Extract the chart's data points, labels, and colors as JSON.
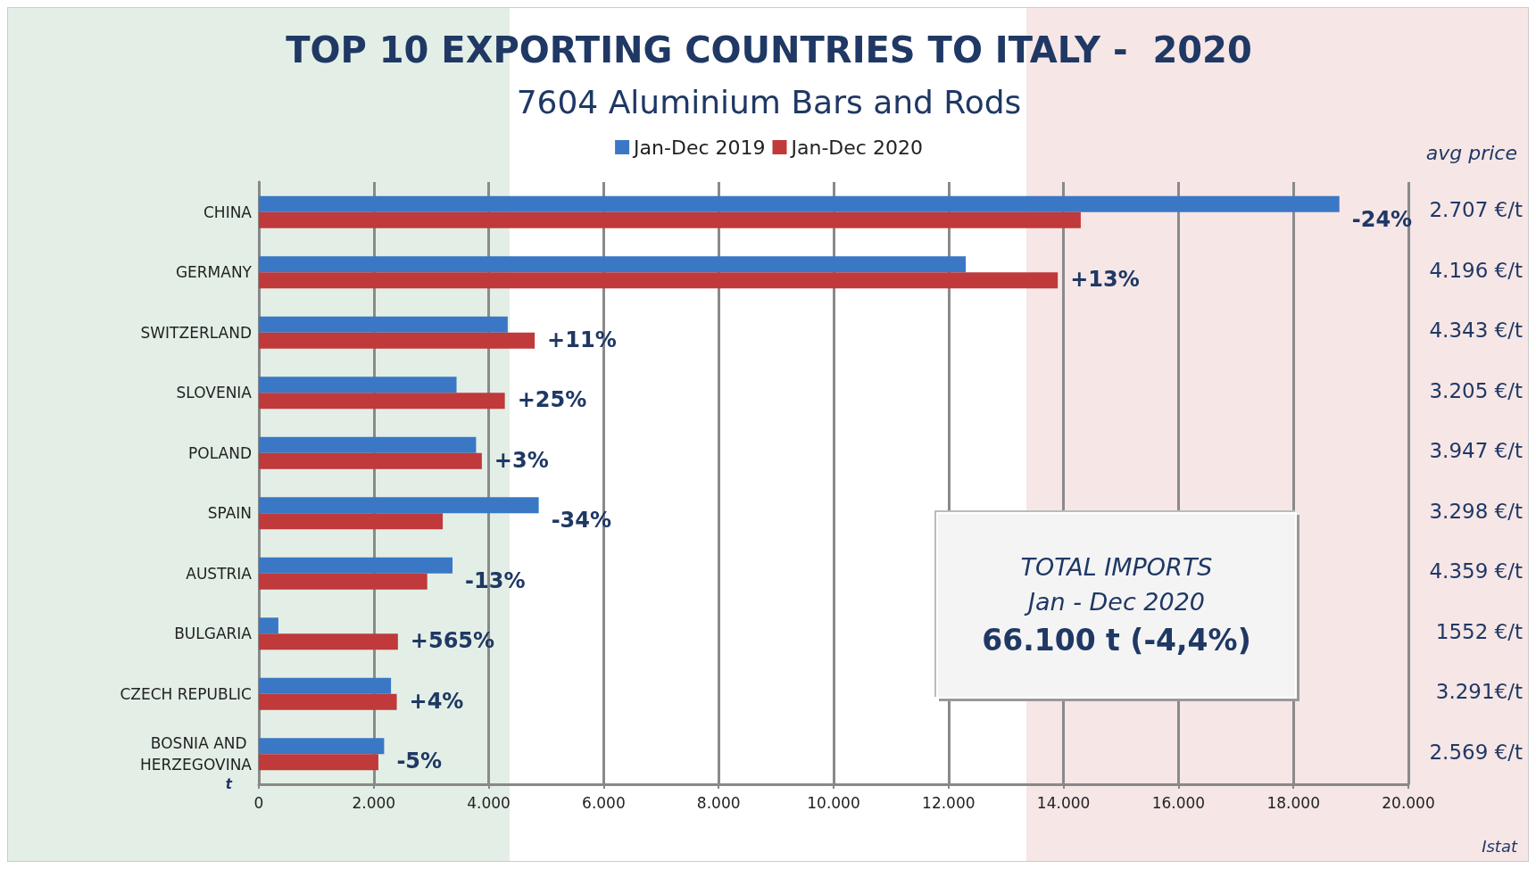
{
  "chart_data": {
    "type": "bar",
    "orientation": "horizontal",
    "title": "TOP 10 EXPORTING COUNTRIES TO ITALY -  2020",
    "subtitle": "7604 Aluminium Bars and Rods",
    "categories": [
      "CHINA",
      "GERMANY",
      "SWITZERLAND",
      "SLOVENIA",
      "POLAND",
      "SPAIN",
      "AUSTRIA",
      "BULGARIA",
      "CZECH REPUBLIC",
      "BOSNIA AND HERZEGOVINA"
    ],
    "series": [
      {
        "name": "Jan-Dec 2019",
        "color": "#3a78c6",
        "values": [
          18800,
          12300,
          4330,
          3440,
          3780,
          4870,
          3370,
          340,
          2300,
          2180
        ]
      },
      {
        "name": "Jan-Dec 2020",
        "color": "#c0393b",
        "values": [
          14300,
          13900,
          4800,
          4280,
          3880,
          3200,
          2930,
          2420,
          2400,
          2080
        ]
      }
    ],
    "xlabel": "t",
    "xlim": [
      0,
      20000
    ],
    "xticks": [
      {
        "value": 0,
        "label": "0"
      },
      {
        "value": 2000,
        "label": "2.000"
      },
      {
        "value": 4000,
        "label": "4.000"
      },
      {
        "value": 6000,
        "label": "6.000"
      },
      {
        "value": 8000,
        "label": "8.000"
      },
      {
        "value": 10000,
        "label": "10.000"
      },
      {
        "value": 12000,
        "label": "12.000"
      },
      {
        "value": 14000,
        "label": "14.000"
      },
      {
        "value": 16000,
        "label": "16.000"
      },
      {
        "value": 18000,
        "label": "18.000"
      },
      {
        "value": 20000,
        "label": "20.000"
      }
    ],
    "grid": "x",
    "legend": "top",
    "annotations": [
      "avg price",
      "Istat",
      "TOTAL IMPORTS",
      "Jan - Dec 2020",
      "66.100 t (-4,4%)",
      "2.707 €/t",
      "4.196 €/t",
      "4.343 €/t",
      "3.205 €/t",
      "3.947 €/t",
      "3.298 €/t",
      "4.359 €/t",
      "1552 €/t",
      "3.291€/t",
      "2.569 €/t",
      "-24%",
      "+13%",
      "+11%",
      "+25%",
      "+3%",
      "-34%",
      "-13%",
      "+565%",
      "+4%",
      "-5%"
    ]
  }
}
